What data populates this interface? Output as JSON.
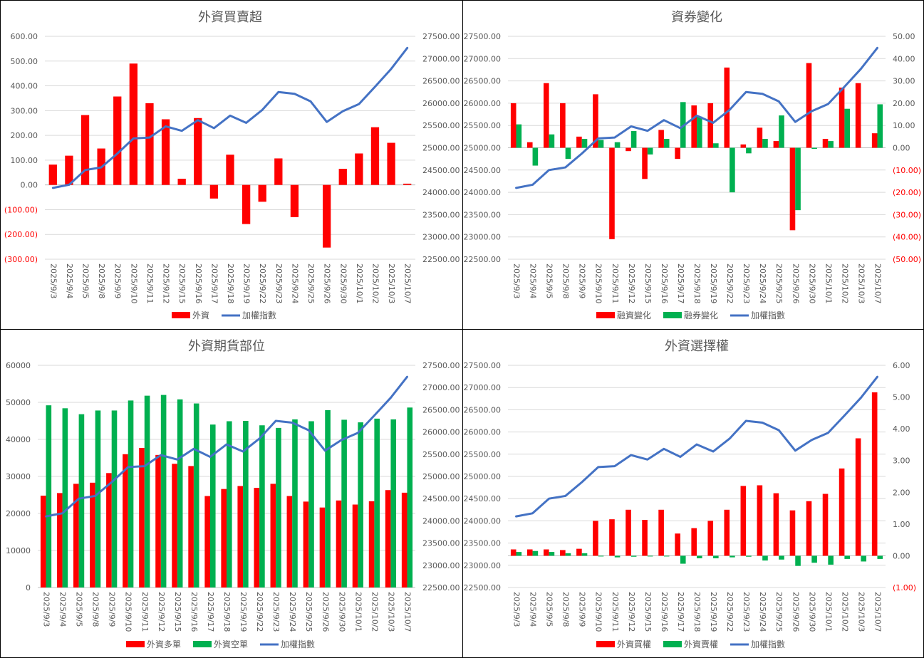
{
  "colors": {
    "red": "#ff0000",
    "green": "#00b050",
    "blue": "#4472c4",
    "grid": "#d9d9d9",
    "text": "#595959",
    "neg": "#ff0000"
  },
  "dates": [
    "2025/9/3",
    "2025/9/4",
    "2025/9/5",
    "2025/9/8",
    "2025/9/9",
    "2025/9/10",
    "2025/9/11",
    "2025/9/12",
    "2025/9/15",
    "2025/9/16",
    "2025/9/17",
    "2025/9/18",
    "2025/9/19",
    "2025/9/22",
    "2025/9/23",
    "2025/9/24",
    "2025/9/25",
    "2025/9/26",
    "2025/9/30",
    "2025/10/1",
    "2025/10/2",
    "2025/10/3",
    "2025/10/7"
  ],
  "chart_data": [
    {
      "type": "bar",
      "title": "外資買賣超",
      "xlabel": "",
      "categories_ref": "dates",
      "left_axis": {
        "min": -300,
        "max": 600,
        "step": 100,
        "format": "dec2"
      },
      "right_axis": {
        "min": 22500,
        "max": 27500,
        "step": 500,
        "format": "dec2"
      },
      "series": [
        {
          "name": "外資",
          "kind": "bar",
          "axis": "left",
          "color": "red",
          "values": [
            82,
            118,
            282,
            147,
            357,
            490,
            330,
            265,
            25,
            270,
            -55,
            122,
            -158,
            -68,
            107,
            -130,
            null,
            -253,
            65,
            127,
            233,
            170,
            5
          ]
        },
        {
          "name": "加權指數",
          "kind": "line",
          "axis": "right",
          "color": "blue",
          "values": [
            24100,
            24170,
            24500,
            24560,
            24870,
            25210,
            25230,
            25480,
            25380,
            25620,
            25440,
            25720,
            25560,
            25850,
            26250,
            26210,
            26040,
            25580,
            25820,
            25980,
            26370,
            26770,
            27240
          ]
        }
      ],
      "legend": [
        "外資",
        "加權指數"
      ],
      "legend_position": "bottom"
    },
    {
      "type": "bar",
      "title": "資券變化",
      "xlabel": "",
      "categories_ref": "dates",
      "left_axis": {
        "min": 22500,
        "max": 27500,
        "step": 500,
        "format": "dec2"
      },
      "right_axis": {
        "min": -50,
        "max": 50,
        "step": 10,
        "format": "dec2"
      },
      "series": [
        {
          "name": "融資變化",
          "kind": "bar",
          "axis": "right",
          "color": "red",
          "values": [
            20,
            2.5,
            29,
            20,
            5,
            24,
            -41,
            -1.5,
            -14,
            8,
            -5,
            19,
            20,
            36,
            1.5,
            9,
            3,
            -37,
            38,
            4,
            27,
            29,
            6.5
          ]
        },
        {
          "name": "融券變化",
          "kind": "bar",
          "axis": "right",
          "color": "green",
          "values": [
            10.5,
            -8,
            6,
            -5,
            4,
            3.5,
            2.5,
            7.5,
            -3,
            4,
            20.5,
            14,
            2,
            -20,
            -2.5,
            4,
            14.5,
            -28,
            -0.5,
            3,
            17.5,
            null,
            19.5
          ]
        },
        {
          "name": "加權指數",
          "kind": "line",
          "axis": "left",
          "color": "blue",
          "values": [
            24100,
            24170,
            24500,
            24560,
            24870,
            25210,
            25230,
            25480,
            25380,
            25620,
            25440,
            25720,
            25560,
            25850,
            26250,
            26210,
            26040,
            25580,
            25820,
            25980,
            26370,
            26770,
            27240
          ]
        }
      ],
      "legend": [
        "融資變化",
        "融券變化",
        "加權指數"
      ],
      "legend_position": "bottom"
    },
    {
      "type": "bar",
      "title": "外資期貨部位",
      "xlabel": "",
      "categories_ref": "dates",
      "left_axis": {
        "min": 0,
        "max": 60000,
        "step": 10000,
        "format": "int"
      },
      "right_axis": {
        "min": 22500,
        "max": 27500,
        "step": 500,
        "format": "dec2"
      },
      "series": [
        {
          "name": "外資多單",
          "kind": "bar",
          "axis": "left",
          "color": "red",
          "values": [
            24800,
            25500,
            28000,
            28300,
            30900,
            36000,
            37700,
            35800,
            33400,
            32800,
            24700,
            26600,
            27400,
            26900,
            28000,
            24700,
            23200,
            21600,
            23500,
            22400,
            23300,
            26300,
            25600
          ]
        },
        {
          "name": "外資空單",
          "kind": "bar",
          "axis": "left",
          "color": "green",
          "values": [
            49200,
            48400,
            46800,
            47800,
            47800,
            50500,
            51800,
            52000,
            50800,
            49700,
            44000,
            44900,
            45000,
            43800,
            43100,
            45400,
            44900,
            47900,
            45300,
            44600,
            45600,
            45400,
            48600
          ]
        },
        {
          "name": "加權指數",
          "kind": "line",
          "axis": "right",
          "color": "blue",
          "values": [
            24100,
            24170,
            24500,
            24560,
            24870,
            25210,
            25230,
            25480,
            25380,
            25620,
            25440,
            25720,
            25560,
            25850,
            26250,
            26210,
            26040,
            25580,
            25820,
            25980,
            26370,
            26770,
            27240
          ]
        }
      ],
      "legend": [
        "外資多單",
        "外資空單",
        "加權指數"
      ],
      "legend_position": "bottom"
    },
    {
      "type": "bar",
      "title": "外資選擇權",
      "xlabel": "",
      "categories_ref": "dates",
      "left_axis": {
        "min": 22500,
        "max": 27500,
        "step": 500,
        "format": "dec2"
      },
      "right_axis": {
        "min": -1,
        "max": 6,
        "step": 1,
        "format": "dec2"
      },
      "series": [
        {
          "name": "外資買權",
          "kind": "bar",
          "axis": "right",
          "color": "red",
          "values": [
            0.2,
            0.2,
            0.2,
            0.18,
            0.22,
            1.1,
            1.15,
            1.45,
            1.13,
            1.45,
            0.7,
            0.87,
            1.1,
            1.45,
            2.2,
            2.22,
            1.97,
            1.43,
            1.72,
            1.95,
            2.75,
            3.7,
            5.15
          ]
        },
        {
          "name": "外資賣權",
          "kind": "bar",
          "axis": "right",
          "color": "green",
          "values": [
            0.12,
            0.15,
            0.12,
            0.08,
            0.08,
            -0.02,
            -0.05,
            -0.03,
            -0.02,
            -0.02,
            -0.25,
            -0.08,
            -0.08,
            -0.05,
            -0.03,
            -0.15,
            -0.12,
            -0.32,
            -0.22,
            -0.28,
            -0.1,
            -0.18,
            -0.1
          ]
        },
        {
          "name": "加權指數",
          "kind": "line",
          "axis": "left",
          "color": "blue",
          "values": [
            24100,
            24170,
            24500,
            24560,
            24870,
            25210,
            25230,
            25480,
            25380,
            25620,
            25440,
            25720,
            25560,
            25850,
            26250,
            26210,
            26040,
            25580,
            25820,
            25980,
            26370,
            26770,
            27240
          ]
        }
      ],
      "legend": [
        "外資買權",
        "外資賣權",
        "加權指數"
      ],
      "legend_position": "bottom"
    }
  ]
}
